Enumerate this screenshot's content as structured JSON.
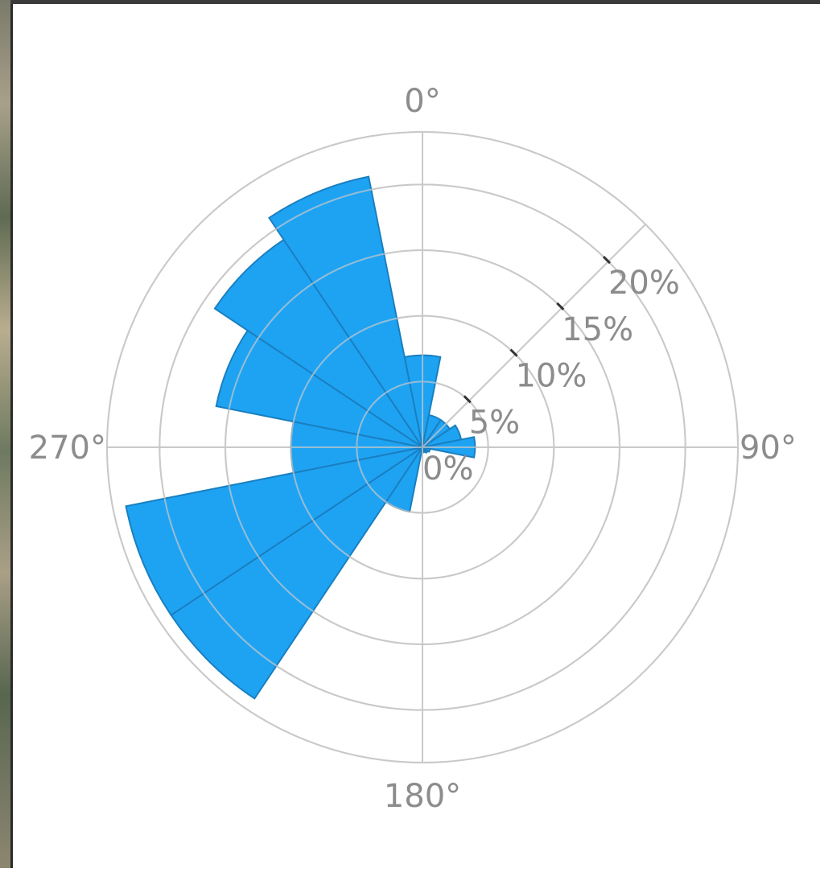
{
  "chart_data": {
    "type": "polar-bar",
    "title": "",
    "angle_labels": [
      "0°",
      "90°",
      "180°",
      "270°"
    ],
    "radial_labels": [
      "0%",
      "5%",
      "10%",
      "15%",
      "20%"
    ],
    "radial_ticks": [
      0,
      5,
      10,
      15,
      20
    ],
    "rmax": 24,
    "bin_width_deg": 22.5,
    "sectors": [
      {
        "center_deg": 0,
        "value": 7
      },
      {
        "center_deg": 22.5,
        "value": 2.5
      },
      {
        "center_deg": 45,
        "value": 2.5
      },
      {
        "center_deg": 67.5,
        "value": 3
      },
      {
        "center_deg": 90,
        "value": 4
      },
      {
        "center_deg": 112.5,
        "value": 0.6
      },
      {
        "center_deg": 135,
        "value": 0.5
      },
      {
        "center_deg": 157.5,
        "value": 0.4
      },
      {
        "center_deg": 180,
        "value": 0.3
      },
      {
        "center_deg": 202.5,
        "value": 5
      },
      {
        "center_deg": 225,
        "value": 23
      },
      {
        "center_deg": 247.5,
        "value": 23
      },
      {
        "center_deg": 270,
        "value": 10
      },
      {
        "center_deg": 292.5,
        "value": 16
      },
      {
        "center_deg": 315,
        "value": 19
      },
      {
        "center_deg": 337.5,
        "value": 21
      }
    ],
    "colors": {
      "fill": "#1ea3f3",
      "edge": "#1a7fc0",
      "grid": "#c9c9c9",
      "label": "#8c8c8c"
    }
  }
}
